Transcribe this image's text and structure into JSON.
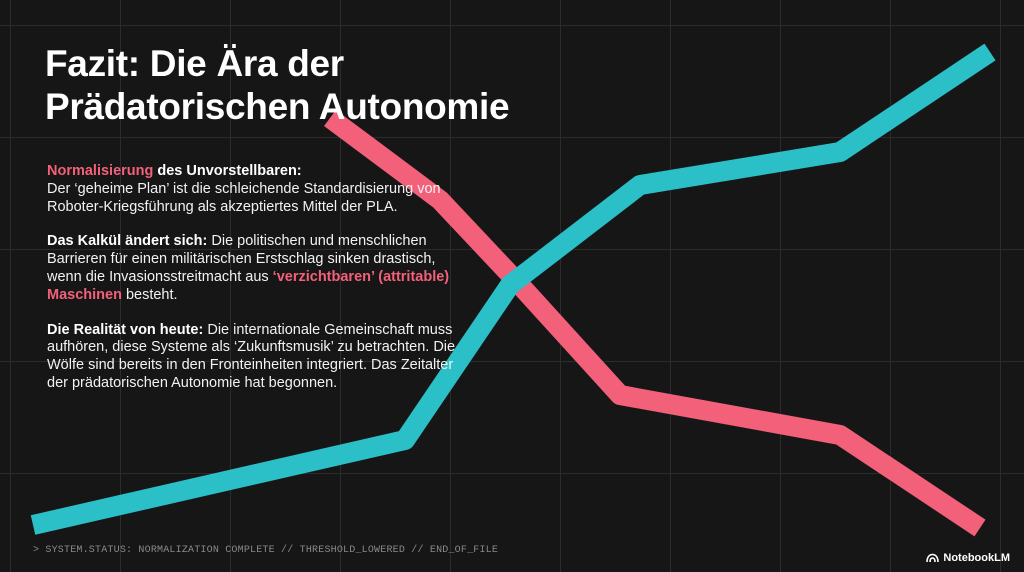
{
  "slide": {
    "title_line1": "Fazit: Die Ära der",
    "title_line2": "Prädatorischen Autonomie",
    "p1": {
      "accent": "Normalisierung",
      "head": " des Unvorstellbaren:",
      "text": "Der ‘geheime Plan’ ist die schleichende Standardisierung von Roboter-Kriegsführung als akzeptiertes Mittel der PLA."
    },
    "p2": {
      "head": "Das Kalkül ändert sich:",
      "text_before": " Die politischen und menschlichen Barrieren für einen militärischen Erstschlag sinken drastisch, wenn die Invasionsstreitmacht aus ",
      "accent": "‘verzichtbaren’ (attritable) Maschinen",
      "text_after": " besteht."
    },
    "p3": {
      "head": "Die Realität von heute:",
      "text": " Die internationale Gemeinschaft muss aufhören, diese Systeme als ‘Zukunftsmusik’ zu betrachten. Die Wölfe sind bereits in den Fronteinheiten integriert. Das Zeitalter der prädatorischen Autonomie hat begonnen."
    },
    "status_line": "> SYSTEM.STATUS: NORMALIZATION COMPLETE // THRESHOLD_LOWERED // END_OF_FILE",
    "brand": "NotebookLM",
    "brand_icon": "notebooklm-logo-icon"
  },
  "colors": {
    "background": "#161616",
    "grid": "#2c2c2c",
    "rising_line": "#2bbfc7",
    "falling_line": "#f2607a",
    "accent_text": "#f2607a"
  }
}
